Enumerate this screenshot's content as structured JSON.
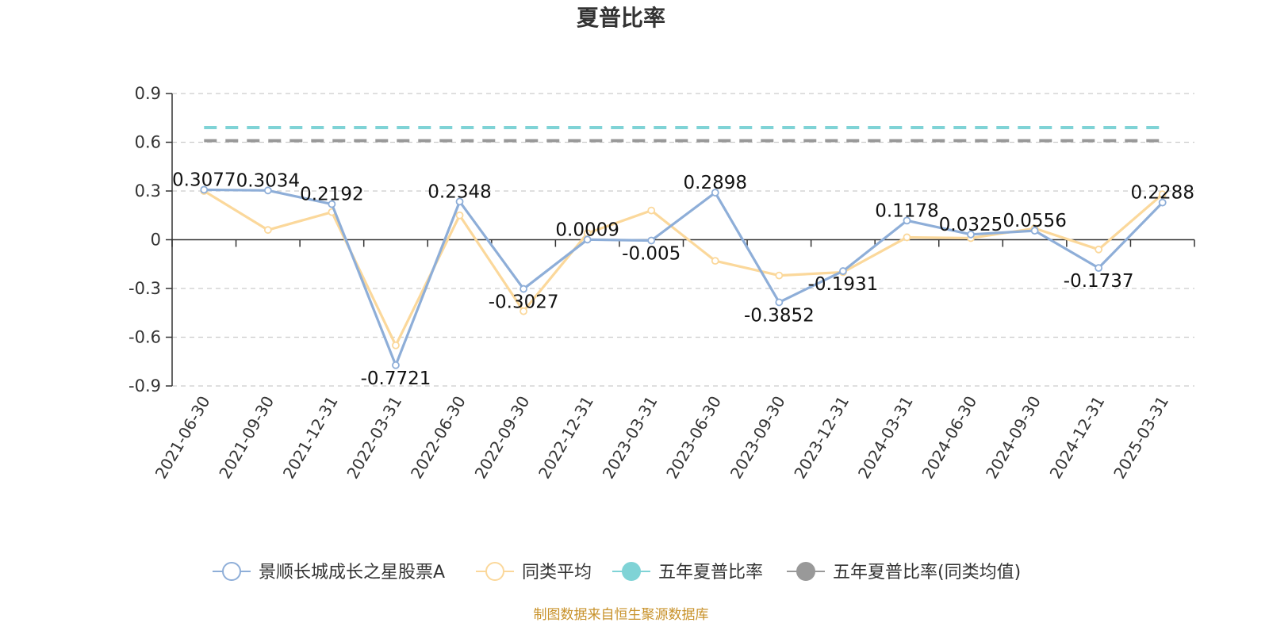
{
  "chart_data": {
    "type": "line",
    "title": "夏普比率",
    "categories": [
      "2021-06-30",
      "2021-09-30",
      "2021-12-31",
      "2022-03-31",
      "2022-06-30",
      "2022-09-30",
      "2022-12-31",
      "2023-03-31",
      "2023-06-30",
      "2023-09-30",
      "2023-12-31",
      "2024-03-31",
      "2024-06-30",
      "2024-09-30",
      "2024-12-31",
      "2025-03-31"
    ],
    "ylim": [
      -0.9,
      0.9
    ],
    "yticks": [
      "0.9",
      "0.6",
      "0.3",
      "0",
      "-0.3",
      "-0.6",
      "-0.9"
    ],
    "grid": true,
    "legend_position": "bottom",
    "series": [
      {
        "name": "景顺长城成长之星股票A",
        "color": "#8eaed8",
        "values": [
          0.3077,
          0.3034,
          0.2192,
          -0.7721,
          0.2348,
          -0.3027,
          0.0009,
          -0.005,
          0.2898,
          -0.3852,
          -0.1931,
          0.1178,
          0.0325,
          0.0556,
          -0.1737,
          0.2288
        ],
        "labels": [
          "0.3077",
          "0.3034",
          "0.2192",
          "-0.7721",
          "0.2348",
          "-0.3027",
          "0.0009",
          "-0.005",
          "0.2898",
          "-0.3852",
          "-0.1931",
          "0.1178",
          "0.0325",
          "0.0556",
          "-0.1737",
          "0.2288"
        ]
      },
      {
        "name": "同类平均",
        "color": "#fbd89b",
        "values": [
          0.3,
          0.06,
          0.17,
          -0.65,
          0.15,
          -0.44,
          0.04,
          0.18,
          -0.13,
          -0.22,
          -0.2,
          0.015,
          0.01,
          0.07,
          -0.06,
          0.28
        ]
      },
      {
        "name": "五年夏普比率",
        "color": "#7fd3d6",
        "constant": 0.69
      },
      {
        "name": "五年夏普比率(同类均值)",
        "color": "#999999",
        "constant": 0.61
      }
    ]
  },
  "footer": {
    "source": "制图数据来自恒生聚源数据库"
  }
}
